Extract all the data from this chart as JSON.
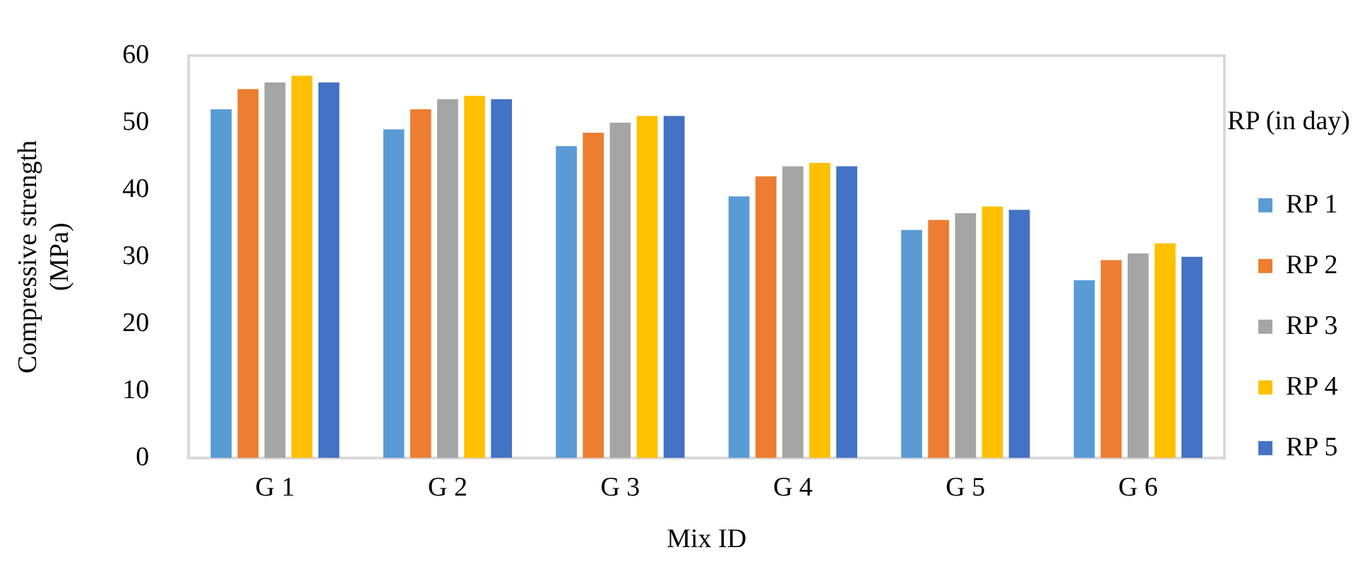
{
  "chart_data": {
    "type": "bar",
    "xlabel": "Mix ID",
    "ylabel": "Compressive strength (MPa)",
    "legend_title": "RP (in day)",
    "legend": "right",
    "grid": false,
    "categories": [
      "G 1",
      "G 2",
      "G 3",
      "G 4",
      "G 5",
      "G 6"
    ],
    "ylim": [
      0,
      60
    ],
    "yticks": [
      0,
      10,
      20,
      30,
      40,
      50,
      60
    ],
    "series": [
      {
        "name": "RP 1",
        "color": "#5b9bd5",
        "values": [
          52,
          49,
          46.5,
          39,
          34,
          26.5
        ]
      },
      {
        "name": "RP 2",
        "color": "#ed7d31",
        "values": [
          55,
          52,
          48.5,
          42,
          35.5,
          29.5
        ]
      },
      {
        "name": "RP 3",
        "color": "#a5a5a5",
        "values": [
          56,
          53.5,
          50,
          43.5,
          36.5,
          30.5
        ]
      },
      {
        "name": "RP 4",
        "color": "#ffc000",
        "values": [
          57,
          54,
          51,
          44,
          37.5,
          32
        ]
      },
      {
        "name": "RP 5",
        "color": "#4472c4",
        "values": [
          56,
          53.5,
          51,
          43.5,
          37,
          30
        ]
      }
    ]
  }
}
